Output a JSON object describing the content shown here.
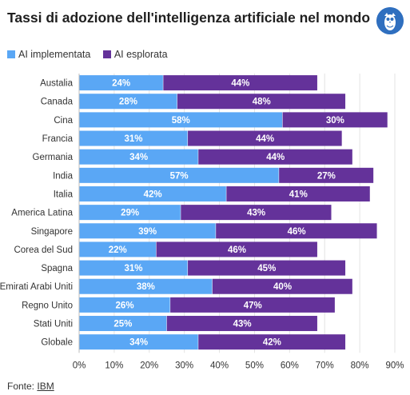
{
  "title": "Tassi di adozione dell'intelligenza artificiale nel mondo",
  "source": {
    "label": "Fonte:",
    "link": "IBM"
  },
  "colors": {
    "implemented": "#5aa7f5",
    "explored": "#64329a"
  },
  "icons": {
    "logo": "owl-logo-icon"
  },
  "chart_data": {
    "type": "bar",
    "orientation": "horizontal",
    "stacked": true,
    "categories": [
      "Austalia",
      "Canada",
      "Cina",
      "Francia",
      "Germania",
      "India",
      "Italia",
      "America Latina",
      "Singapore",
      "Corea del Sud",
      "Spagna",
      "Emirati Arabi Uniti",
      "Regno Unito",
      "Stati Uniti",
      "Globale"
    ],
    "series": [
      {
        "name": "AI implementata",
        "values": [
          24,
          28,
          58,
          31,
          34,
          57,
          42,
          29,
          39,
          22,
          31,
          38,
          26,
          25,
          34
        ],
        "labels": [
          "24%",
          "28%",
          "58%",
          "31%",
          "34%",
          "57%",
          "42%",
          "29%",
          "39%",
          "22%",
          "31%",
          "38%",
          "26%",
          "25%",
          "34%"
        ]
      },
      {
        "name": "AI esplorata",
        "values": [
          44,
          48,
          30,
          44,
          44,
          27,
          41,
          43,
          46,
          46,
          45,
          40,
          47,
          43,
          42
        ],
        "labels": [
          "44%",
          "48%",
          "30%",
          "44%",
          "44%",
          "27%",
          "41%",
          "43%",
          "46%",
          "46%",
          "45%",
          "40%",
          "47%",
          "43%",
          "42%"
        ]
      }
    ],
    "xlim": [
      0,
      90
    ],
    "ticks": [
      0,
      10,
      20,
      30,
      40,
      50,
      60,
      70,
      80,
      90
    ],
    "tick_labels": [
      "0%",
      "10%",
      "20%",
      "30%",
      "40%",
      "50%",
      "60%",
      "70%",
      "80%",
      "90%"
    ],
    "legend_position": "top-left",
    "grid": true
  }
}
